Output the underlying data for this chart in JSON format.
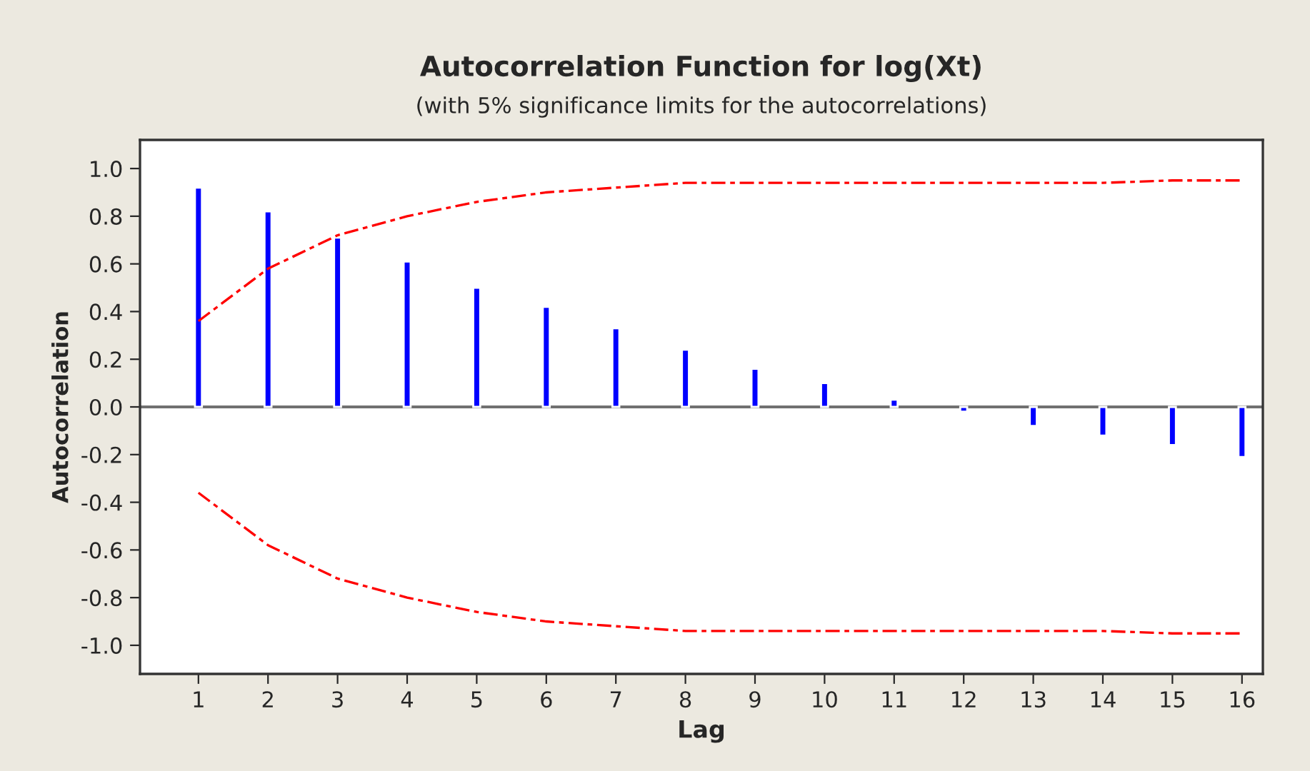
{
  "chart_data": {
    "type": "bar",
    "title": "Autocorrelation Function for log(Xt)",
    "subtitle": "(with 5% significance limits for the autocorrelations)",
    "xlabel": "Lag",
    "ylabel": "Autocorrelation",
    "x": [
      1,
      2,
      3,
      4,
      5,
      6,
      7,
      8,
      9,
      10,
      11,
      12,
      13,
      14,
      15,
      16
    ],
    "series": [
      {
        "color": "#0000ff",
        "values": [
          0.92,
          0.82,
          0.71,
          0.61,
          0.5,
          0.42,
          0.33,
          0.24,
          0.16,
          0.1,
          0.03,
          -0.02,
          -0.08,
          -0.12,
          -0.16,
          -0.21
        ]
      },
      {
        "type": "line",
        "color": "#ff0000",
        "line_style": "dashed",
        "values": [
          0.36,
          0.58,
          0.72,
          0.8,
          0.86,
          0.9,
          0.92,
          0.94,
          0.94,
          0.94,
          0.94,
          0.94,
          0.94,
          0.94,
          0.95,
          0.95
        ]
      },
      {
        "type": "line",
        "color": "#ff0000",
        "line_style": "dashed",
        "values": [
          -0.36,
          -0.58,
          -0.72,
          -0.8,
          -0.86,
          -0.9,
          -0.92,
          -0.94,
          -0.94,
          -0.94,
          -0.94,
          -0.94,
          -0.94,
          -0.94,
          -0.95,
          -0.95
        ]
      }
    ],
    "ref_lines": [
      {
        "axis": "y",
        "value": 0,
        "color": "#707070"
      }
    ],
    "xlim": [
      0.16,
      16.3
    ],
    "xticks": [
      1,
      2,
      3,
      4,
      5,
      6,
      7,
      8,
      9,
      10,
      11,
      12,
      13,
      14,
      15,
      16
    ],
    "ylim": [
      -1.12,
      1.12
    ],
    "yticks": [
      {
        "value": 1.0,
        "label": "1.0"
      },
      {
        "value": 0.8,
        "label": "0.8"
      },
      {
        "value": 0.6,
        "label": "0.6"
      },
      {
        "value": 0.4,
        "label": "0.4"
      },
      {
        "value": 0.2,
        "label": "0.2"
      },
      {
        "value": 0.0,
        "label": "0.0"
      },
      {
        "value": -0.2,
        "label": "-0.2"
      },
      {
        "value": -0.4,
        "label": "-0.4"
      },
      {
        "value": -0.6,
        "label": "-0.6"
      },
      {
        "value": -0.8,
        "label": "-0.8"
      },
      {
        "value": -1.0,
        "label": "-1.0"
      }
    ],
    "grid": false
  }
}
